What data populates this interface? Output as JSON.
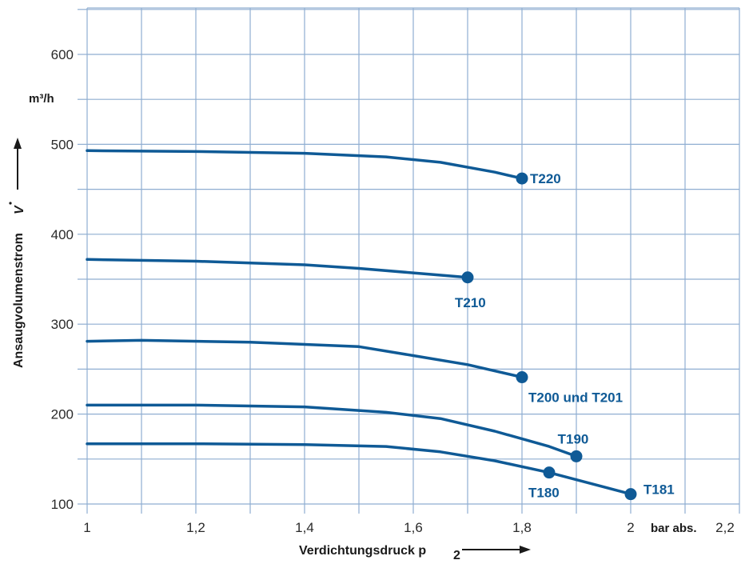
{
  "chart_data": {
    "type": "line",
    "xlabel": "Verdichtungsdruck p",
    "xlabel_sub": "2",
    "ylabel": "Ansaugvolumenstrom",
    "ylabel_symbol": "V",
    "y_unit": "m³/h",
    "x_unit": "bar abs.",
    "xlim": [
      1,
      2.2
    ],
    "ylim": [
      100,
      650
    ],
    "x_ticks": [
      1,
      1.2,
      1.4,
      1.6,
      1.8,
      2,
      2.2
    ],
    "x_tick_labels": [
      "1",
      "1,2",
      "1,4",
      "1,6",
      "1,8",
      "2",
      "2,2"
    ],
    "y_ticks": [
      100,
      200,
      300,
      400,
      500,
      600
    ],
    "y_tick_labels": [
      "100",
      "200",
      "300",
      "400",
      "500",
      "600"
    ],
    "grid": true,
    "line_color": "#0f5a96",
    "grid_color": "#8faed1",
    "series": [
      {
        "name": "T220",
        "points": [
          [
            1,
            493
          ],
          [
            1.2,
            492
          ],
          [
            1.4,
            490
          ],
          [
            1.55,
            486
          ],
          [
            1.65,
            480
          ],
          [
            1.75,
            469
          ],
          [
            1.8,
            462
          ]
        ]
      },
      {
        "name": "T210",
        "points": [
          [
            1,
            372
          ],
          [
            1.2,
            370
          ],
          [
            1.4,
            366
          ],
          [
            1.5,
            362
          ],
          [
            1.6,
            357
          ],
          [
            1.7,
            352
          ]
        ]
      },
      {
        "name": "T200 und T201",
        "points": [
          [
            1,
            281
          ],
          [
            1.1,
            282
          ],
          [
            1.3,
            280
          ],
          [
            1.5,
            275
          ],
          [
            1.6,
            265
          ],
          [
            1.7,
            255
          ],
          [
            1.8,
            241
          ]
        ]
      },
      {
        "name": "T190",
        "points": [
          [
            1,
            210
          ],
          [
            1.2,
            210
          ],
          [
            1.4,
            208
          ],
          [
            1.55,
            202
          ],
          [
            1.65,
            195
          ],
          [
            1.75,
            181
          ],
          [
            1.85,
            164
          ],
          [
            1.9,
            153
          ]
        ]
      },
      {
        "name": "T181",
        "points": [
          [
            1,
            167
          ],
          [
            1.2,
            167
          ],
          [
            1.4,
            166
          ],
          [
            1.55,
            164
          ],
          [
            1.65,
            158
          ],
          [
            1.75,
            148
          ],
          [
            1.85,
            135
          ],
          [
            2,
            111
          ]
        ]
      },
      {
        "name": "T180",
        "points": [
          [
            1.85,
            135
          ]
        ]
      }
    ]
  }
}
